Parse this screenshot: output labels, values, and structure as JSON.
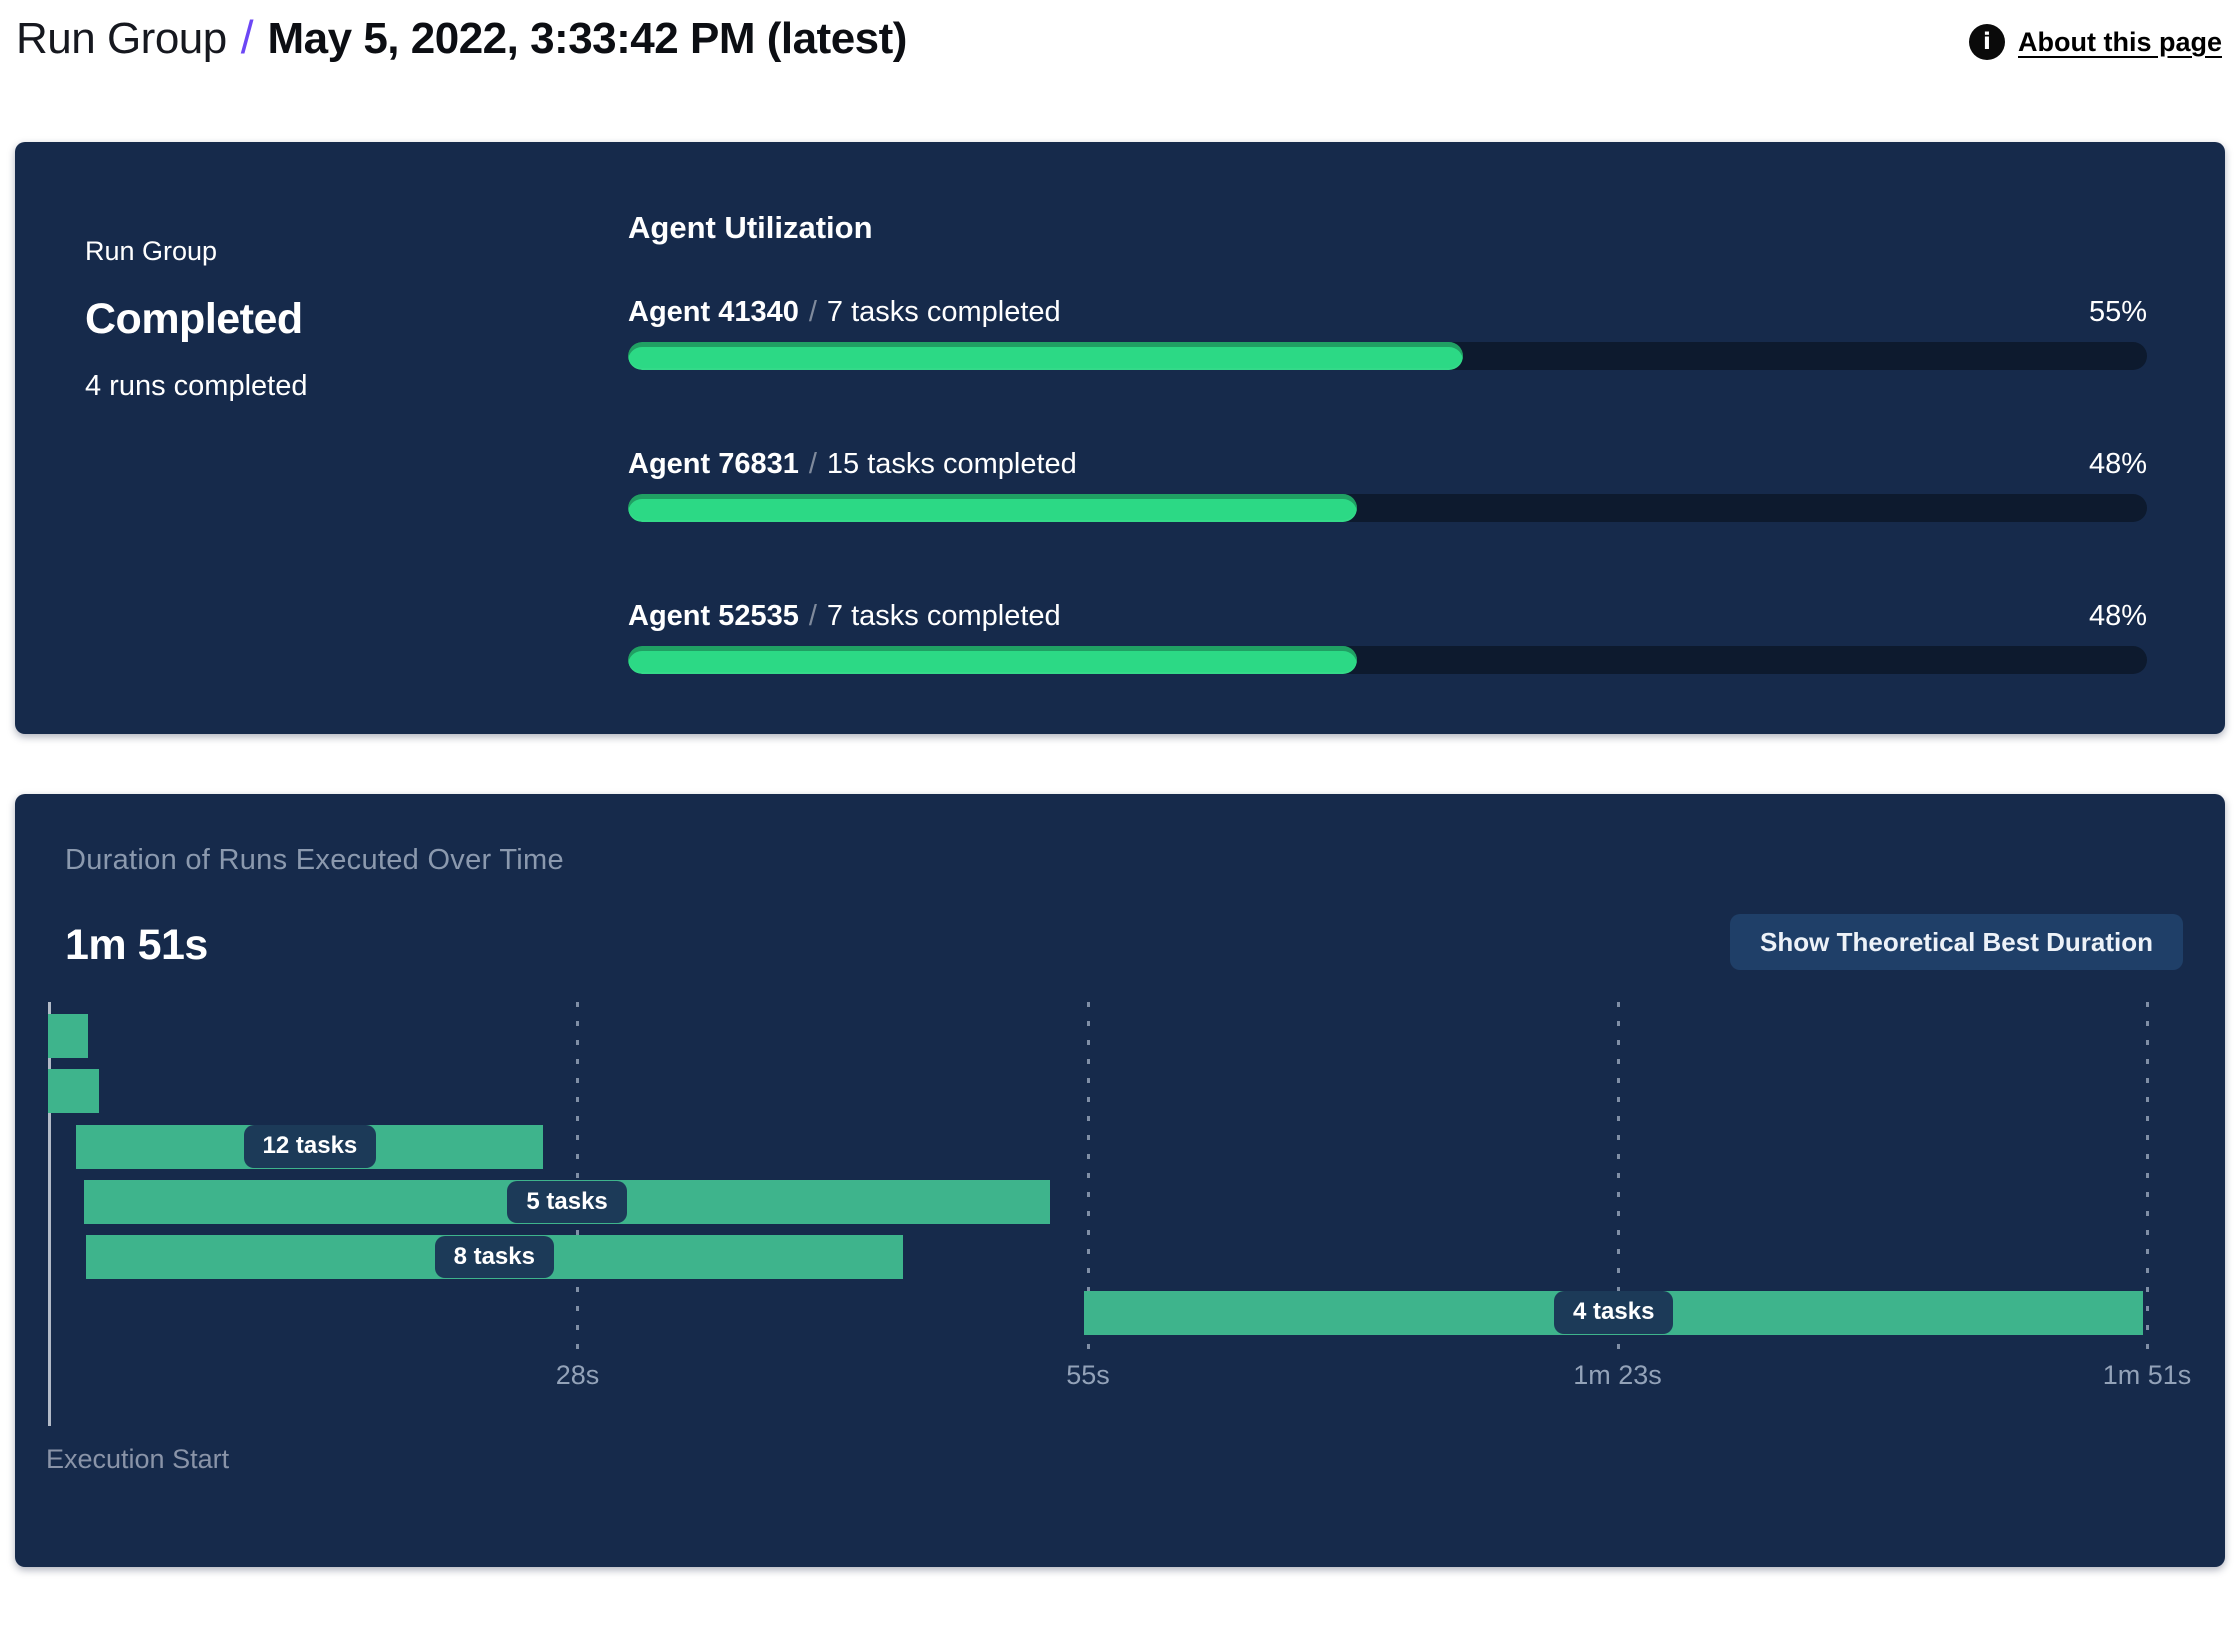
{
  "header": {
    "breadcrumb": "Run Group",
    "separator": "/",
    "title": "May 5, 2022, 3:33:42 PM (latest)",
    "about_link": "About this page",
    "info_icon_glyph": "i"
  },
  "summary_card": {
    "group_label": "Run Group",
    "status": "Completed",
    "runs_completed": "4 runs completed",
    "agent_utilization": {
      "title": "Agent Utilization",
      "separator": "/",
      "agents": [
        {
          "name": "Agent 41340",
          "tasks": "7 tasks completed",
          "percent": 55,
          "percent_label": "55%"
        },
        {
          "name": "Agent 76831",
          "tasks": "15 tasks completed",
          "percent": 48,
          "percent_label": "48%"
        },
        {
          "name": "Agent 52535",
          "tasks": "7 tasks completed",
          "percent": 48,
          "percent_label": "48%"
        }
      ]
    }
  },
  "duration_card": {
    "title": "Duration of Runs Executed Over Time",
    "best_duration": "1m 51s",
    "button_label": "Show Theoretical Best Duration",
    "execution_start_label": "Execution Start"
  },
  "chart_data": {
    "type": "bar",
    "subtype": "gantt-timeline",
    "title": "Duration of Runs Executed Over Time",
    "total_duration_label": "1m 51s",
    "x_axis": {
      "unit": "seconds",
      "min": 0,
      "max": 111,
      "ticks": [
        {
          "time_s": 28,
          "label": "28s"
        },
        {
          "time_s": 55,
          "label": "55s"
        },
        {
          "time_s": 83,
          "label": "1m 23s"
        },
        {
          "time_s": 111,
          "label": "1m 51s"
        }
      ]
    },
    "runs": [
      {
        "start_s": 0,
        "end_s": 2.1,
        "label": ""
      },
      {
        "start_s": 0,
        "end_s": 2.7,
        "label": ""
      },
      {
        "start_s": 1.5,
        "end_s": 26.2,
        "label": "12 tasks"
      },
      {
        "start_s": 1.9,
        "end_s": 53.0,
        "label": "5 tasks"
      },
      {
        "start_s": 2.0,
        "end_s": 45.2,
        "label": "8 tasks"
      },
      {
        "start_s": 54.8,
        "end_s": 110.8,
        "label": "4 tasks"
      }
    ]
  },
  "colors": {
    "card_bg": "#162A4B",
    "progress_fill": "#2CD985",
    "progress_track": "#0D1A2E",
    "gantt_bar": "#3EB48C",
    "accent_slash": "#6C47F5",
    "button_bg": "#1F3F68",
    "muted_title": "#8B99AE"
  }
}
